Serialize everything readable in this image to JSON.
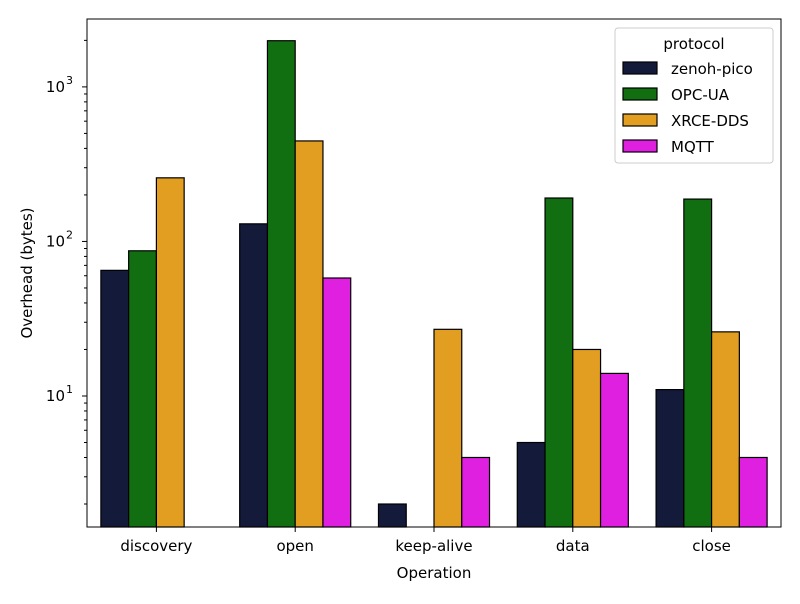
{
  "chart_data": {
    "type": "bar",
    "title": "",
    "xlabel": "Operation",
    "ylabel": "Overhead (bytes)",
    "yscale": "log",
    "ylim": [
      1.42,
      2750
    ],
    "yticks": [
      {
        "value": 10,
        "label": "10",
        "exp": "1"
      },
      {
        "value": 100,
        "label": "10",
        "exp": "2"
      },
      {
        "value": 1000,
        "label": "10",
        "exp": "3"
      }
    ],
    "categories": [
      "discovery",
      "open",
      "keep-alive",
      "data",
      "close"
    ],
    "legend": {
      "title": "protocol",
      "position": "top-right"
    },
    "grid": false,
    "series": [
      {
        "name": "zenoh-pico",
        "color": "#131a3a",
        "values": [
          65,
          130,
          2,
          5,
          11
        ]
      },
      {
        "name": "OPC-UA",
        "color": "#116f11",
        "values": [
          87,
          1990,
          null,
          191,
          188
        ]
      },
      {
        "name": "XRCE-DDS",
        "color": "#e19e20",
        "values": [
          258,
          447,
          27,
          20,
          26
        ]
      },
      {
        "name": "MQTT",
        "color": "#e020e0",
        "values": [
          null,
          58,
          4,
          14,
          4
        ]
      }
    ]
  }
}
